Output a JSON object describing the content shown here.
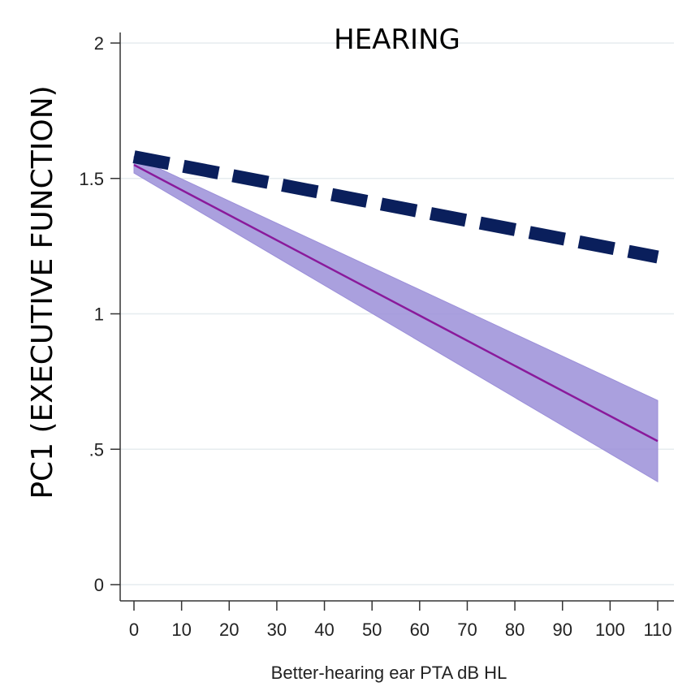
{
  "chart_data": {
    "type": "line",
    "title": "HEARING",
    "xlabel": "Better-hearing ear PTA dB HL",
    "ylabel": "PC1 (EXECUTIVE FUNCTION)",
    "xlim": [
      0,
      110
    ],
    "ylim": [
      0,
      2
    ],
    "xticks": [
      0,
      10,
      20,
      30,
      40,
      50,
      60,
      70,
      80,
      90,
      100,
      110
    ],
    "yticks": [
      0,
      0.5,
      1,
      1.5,
      2
    ],
    "ytick_labels": [
      "0",
      ".5",
      "1",
      "1.5",
      "2"
    ],
    "grid": "horizontal",
    "series": [
      {
        "style": "dashed",
        "color": "#0a1f5c",
        "x": [
          0,
          110
        ],
        "y": [
          1.58,
          1.21
        ]
      },
      {
        "style": "solid",
        "color": "#8a1a9b",
        "band_color": "#9b8fd8",
        "x": [
          0,
          110
        ],
        "y": [
          1.55,
          0.53
        ],
        "ci_lower": [
          1.52,
          0.38
        ],
        "ci_upper": [
          1.58,
          0.68
        ]
      }
    ]
  }
}
